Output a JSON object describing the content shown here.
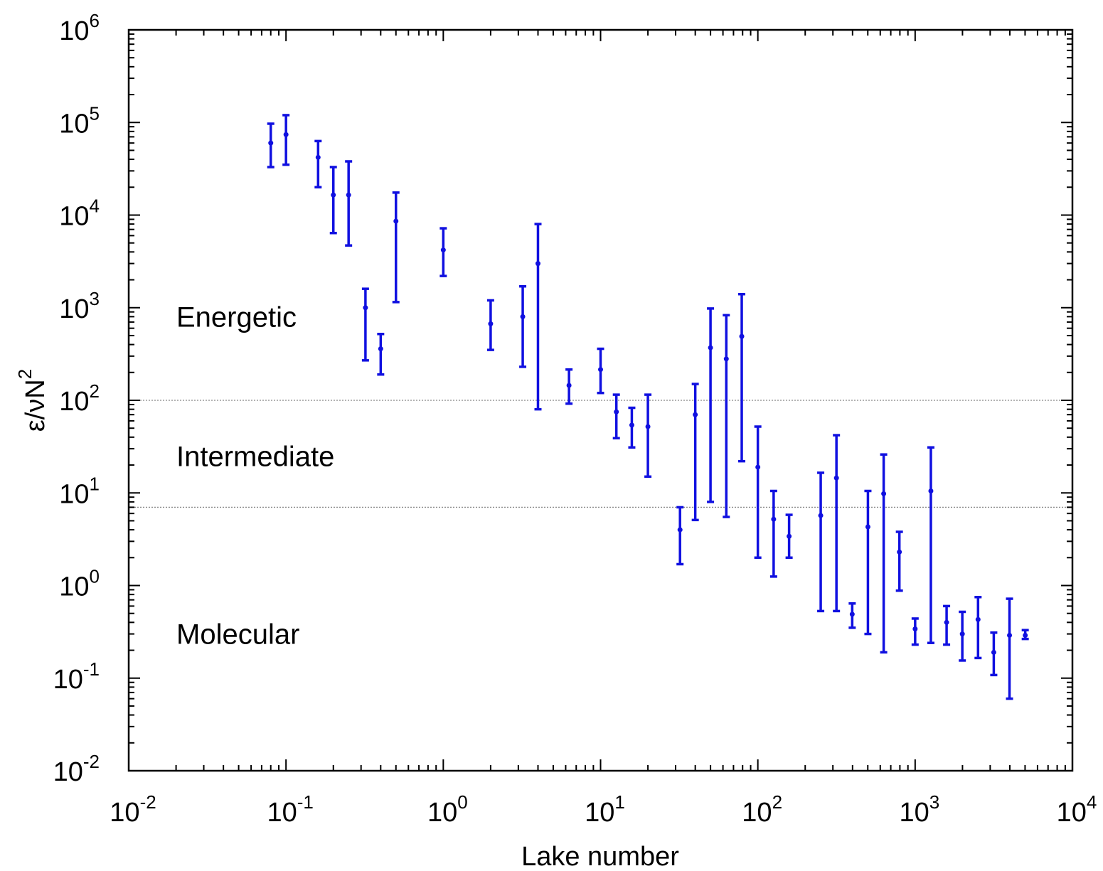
{
  "chart_data": {
    "type": "scatter",
    "x_scale": "log",
    "y_scale": "log",
    "xlim": [
      0.01,
      10000
    ],
    "ylim": [
      0.01,
      1000000
    ],
    "xlabel": "Lake number",
    "ylabel": {
      "base": "ε/νN",
      "sup": "2"
    },
    "x_ticks": [
      {
        "value": 0.01,
        "base": "10",
        "exp": "-2"
      },
      {
        "value": 0.1,
        "base": "10",
        "exp": "-1"
      },
      {
        "value": 1,
        "base": "10",
        "exp": "0"
      },
      {
        "value": 10,
        "base": "10",
        "exp": "1"
      },
      {
        "value": 100,
        "base": "10",
        "exp": "2"
      },
      {
        "value": 1000,
        "base": "10",
        "exp": "3"
      },
      {
        "value": 10000,
        "base": "10",
        "exp": "4"
      }
    ],
    "y_ticks": [
      {
        "value": 0.01,
        "base": "10",
        "exp": "-2"
      },
      {
        "value": 0.1,
        "base": "10",
        "exp": "-1"
      },
      {
        "value": 1,
        "base": "10",
        "exp": "0"
      },
      {
        "value": 10,
        "base": "10",
        "exp": "1"
      },
      {
        "value": 100,
        "base": "10",
        "exp": "2"
      },
      {
        "value": 1000,
        "base": "10",
        "exp": "3"
      },
      {
        "value": 10000,
        "base": "10",
        "exp": "4"
      },
      {
        "value": 100000,
        "base": "10",
        "exp": "5"
      },
      {
        "value": 1000000,
        "base": "10",
        "exp": "6"
      }
    ],
    "reference_lines": [
      {
        "y": 100,
        "style": "dotted",
        "color": "#888888"
      },
      {
        "y": 7,
        "style": "dotted",
        "color": "#888888"
      }
    ],
    "region_labels": [
      {
        "text": "Energetic",
        "y": 800
      },
      {
        "text": "Intermediate",
        "y": 25
      },
      {
        "text": "Molecular",
        "y": 0.3
      }
    ],
    "series": [
      {
        "color": "#1010e0",
        "points": [
          {
            "x": 0.08,
            "y": 60000,
            "ylo": 33000,
            "yhi": 97000
          },
          {
            "x": 0.1,
            "y": 74000,
            "ylo": 35000,
            "yhi": 120000
          },
          {
            "x": 0.16,
            "y": 42000,
            "ylo": 20000,
            "yhi": 63000
          },
          {
            "x": 0.2,
            "y": 16500,
            "ylo": 6400,
            "yhi": 33000
          },
          {
            "x": 0.25,
            "y": 16500,
            "ylo": 4700,
            "yhi": 38000
          },
          {
            "x": 0.32,
            "y": 1000,
            "ylo": 270,
            "yhi": 1600
          },
          {
            "x": 0.4,
            "y": 360,
            "ylo": 190,
            "yhi": 520
          },
          {
            "x": 0.5,
            "y": 8600,
            "ylo": 1150,
            "yhi": 17500
          },
          {
            "x": 1.0,
            "y": 4200,
            "ylo": 2200,
            "yhi": 7200
          },
          {
            "x": 2.0,
            "y": 670,
            "ylo": 350,
            "yhi": 1200
          },
          {
            "x": 3.2,
            "y": 800,
            "ylo": 230,
            "yhi": 1700
          },
          {
            "x": 4.0,
            "y": 3000,
            "ylo": 80,
            "yhi": 8000
          },
          {
            "x": 6.3,
            "y": 145,
            "ylo": 92,
            "yhi": 215
          },
          {
            "x": 10.0,
            "y": 215,
            "ylo": 120,
            "yhi": 360
          },
          {
            "x": 12.6,
            "y": 75,
            "ylo": 39,
            "yhi": 115
          },
          {
            "x": 15.8,
            "y": 54,
            "ylo": 31,
            "yhi": 83
          },
          {
            "x": 20.0,
            "y": 52,
            "ylo": 15,
            "yhi": 115
          },
          {
            "x": 32,
            "y": 4.0,
            "ylo": 1.7,
            "yhi": 7.0
          },
          {
            "x": 40,
            "y": 70,
            "ylo": 5.1,
            "yhi": 150
          },
          {
            "x": 50,
            "y": 370,
            "ylo": 8.0,
            "yhi": 980
          },
          {
            "x": 63,
            "y": 280,
            "ylo": 5.5,
            "yhi": 830
          },
          {
            "x": 79,
            "y": 490,
            "ylo": 22,
            "yhi": 1400
          },
          {
            "x": 100,
            "y": 19,
            "ylo": 2.0,
            "yhi": 52
          },
          {
            "x": 126,
            "y": 5.2,
            "ylo": 1.25,
            "yhi": 10.5
          },
          {
            "x": 158,
            "y": 3.4,
            "ylo": 2.0,
            "yhi": 5.8
          },
          {
            "x": 251,
            "y": 5.7,
            "ylo": 0.53,
            "yhi": 16.5
          },
          {
            "x": 316,
            "y": 14.5,
            "ylo": 0.53,
            "yhi": 42
          },
          {
            "x": 398,
            "y": 0.49,
            "ylo": 0.35,
            "yhi": 0.64
          },
          {
            "x": 501,
            "y": 4.3,
            "ylo": 0.3,
            "yhi": 10.5
          },
          {
            "x": 631,
            "y": 9.8,
            "ylo": 0.19,
            "yhi": 26
          },
          {
            "x": 794,
            "y": 2.3,
            "ylo": 0.88,
            "yhi": 3.8
          },
          {
            "x": 1000,
            "y": 0.34,
            "ylo": 0.23,
            "yhi": 0.44
          },
          {
            "x": 1259,
            "y": 10.5,
            "ylo": 0.24,
            "yhi": 31
          },
          {
            "x": 1585,
            "y": 0.4,
            "ylo": 0.23,
            "yhi": 0.6
          },
          {
            "x": 1995,
            "y": 0.3,
            "ylo": 0.155,
            "yhi": 0.52
          },
          {
            "x": 2512,
            "y": 0.43,
            "ylo": 0.165,
            "yhi": 0.75
          },
          {
            "x": 3162,
            "y": 0.19,
            "ylo": 0.108,
            "yhi": 0.31
          },
          {
            "x": 3981,
            "y": 0.29,
            "ylo": 0.06,
            "yhi": 0.72
          },
          {
            "x": 5012,
            "y": 0.29,
            "ylo": 0.265,
            "yhi": 0.33
          }
        ]
      }
    ]
  }
}
